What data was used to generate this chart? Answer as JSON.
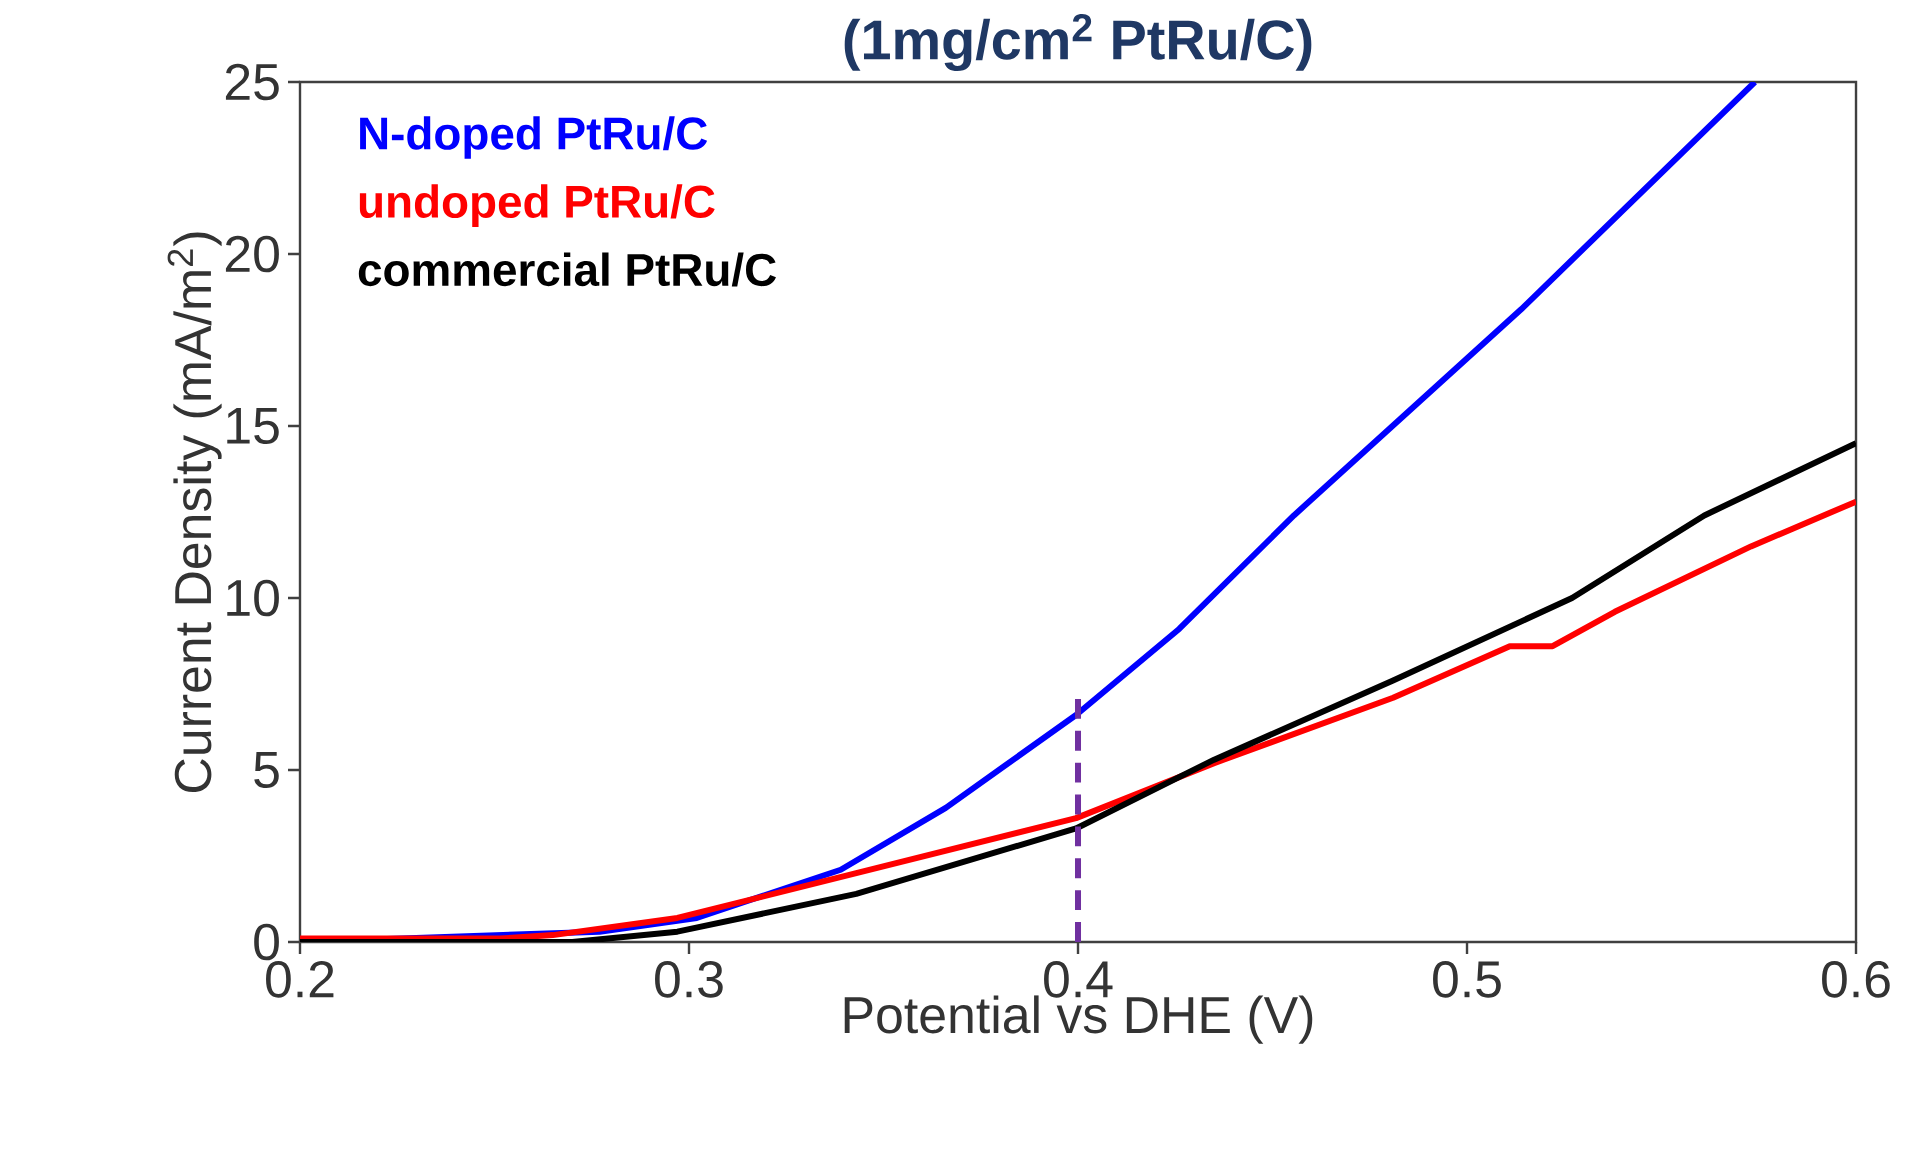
{
  "chart_data": {
    "type": "line",
    "title": "(1mg/cm$^{2}$ PtRu/C)",
    "xlabel": "Potential vs DHE (V)",
    "ylabel": "Current Density (mA/m$^{2}$)",
    "xlim": [
      0.2,
      0.6
    ],
    "ylim": [
      0,
      25
    ],
    "xticks": [
      0.2,
      0.3,
      0.4,
      0.5,
      0.6
    ],
    "yticks": [
      0,
      5,
      10,
      15,
      20,
      25
    ],
    "grid": false,
    "legend": "top left",
    "marker": "none",
    "series": [
      {
        "name": "N-doped PtRu/C",
        "color": "#0000ff",
        "x": [
          0.2,
          0.277,
          0.302,
          0.339,
          0.366,
          0.3995,
          0.426,
          0.4555,
          0.514,
          0.574
        ],
        "values": [
          0,
          0.3,
          0.7,
          2.1,
          3.9,
          6.6,
          9.1,
          12.4,
          18.4,
          25
        ]
      },
      {
        "name": "undoped PtRu/C",
        "color": "#ff0000",
        "x": [
          0.2,
          0.2514,
          0.265,
          0.297,
          0.343,
          0.3995,
          0.435,
          0.481,
          0.511,
          0.522,
          0.538,
          0.573,
          0.6
        ],
        "values": [
          0.1,
          0.1,
          0.2,
          0.7,
          2.0,
          3.6,
          5.2,
          7.1,
          8.6,
          8.6,
          9.6,
          11.5,
          12.8
        ]
      },
      {
        "name": "commercial PtRu/C",
        "color": "#000000",
        "x": [
          0.2,
          0.27,
          0.297,
          0.343,
          0.3995,
          0.435,
          0.481,
          0.527,
          0.561,
          0.6
        ],
        "values": [
          0,
          0,
          0.3,
          1.4,
          3.3,
          5.3,
          7.6,
          10.0,
          12.4,
          14.5
        ]
      },
      {
        "color": "#7030a0",
        "line_style": "dashed",
        "x": [
          0.4,
          0.4
        ],
        "values": [
          0,
          7.2
        ]
      }
    ]
  }
}
